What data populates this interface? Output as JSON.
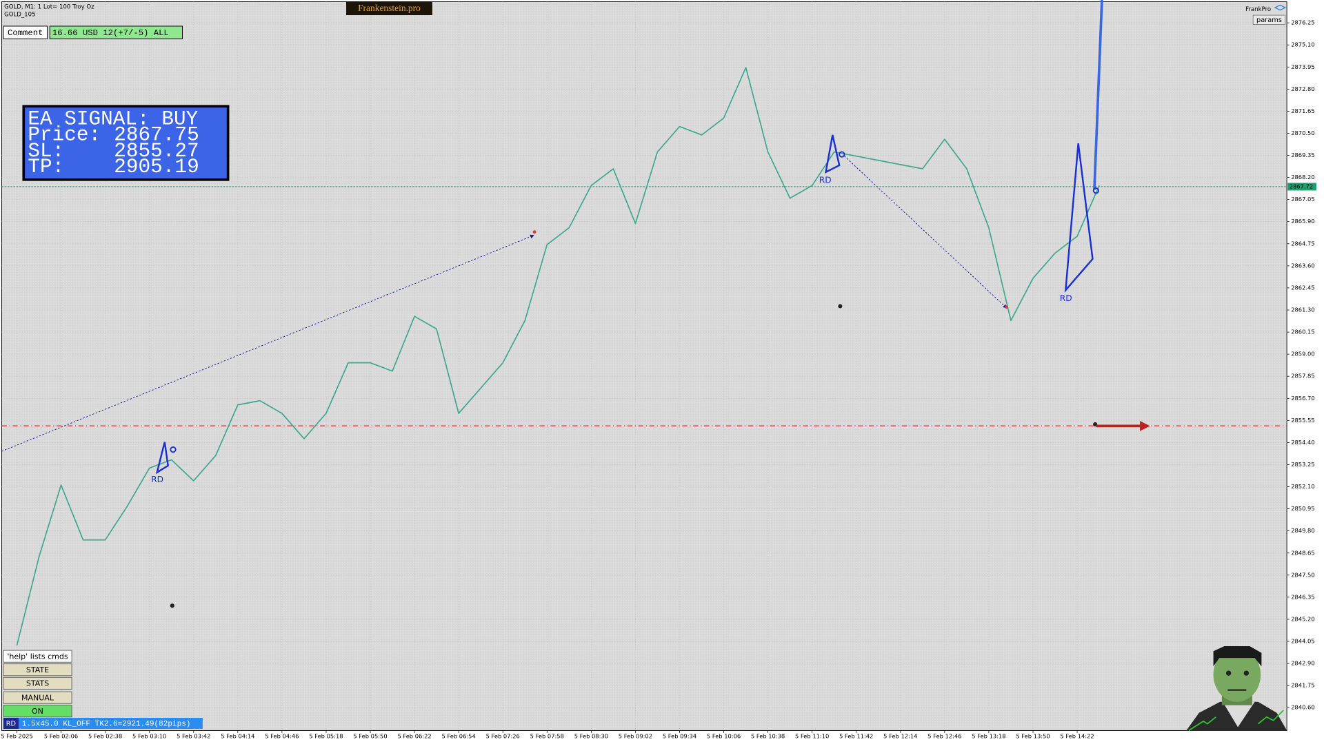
{
  "header": {
    "symbol": "GOLD, M1:  1 Lot= 100 Troy Oz",
    "account": "GOLD_105",
    "brand": "Frankenstein.pro",
    "user": "FrankPro",
    "params": "params"
  },
  "comment": {
    "label": "Comment",
    "text": "16.66 USD 12(+7/-5) ALL"
  },
  "signal": {
    "title": "EA SIGNAL: BUY",
    "price_label": "Price:",
    "price": 2867.75,
    "sl_label": "SL:",
    "sl": 2855.27,
    "tp_label": "TP:",
    "tp": 2905.19
  },
  "buttons": [
    "'help' lists cmds",
    "STATE",
    "STATS",
    "MANUAL",
    "ON"
  ],
  "status": {
    "tag": "RD",
    "text": "1.5x45.0 KL_OFF TK2.6=2921.49(82pips)"
  },
  "chart_data": {
    "type": "line",
    "categories": [
      "5 Feb 2025",
      null,
      "5 Feb 02:06",
      null,
      "5 Feb 02:38",
      null,
      "5 Feb 03:10",
      null,
      "5 Feb 03:42",
      null,
      "5 Feb 04:14",
      null,
      "5 Feb 04:46",
      null,
      "5 Feb 05:18",
      null,
      "5 Feb 05:50",
      null,
      "5 Feb 06:22",
      null,
      "5 Feb 06:54",
      null,
      "5 Feb 07:26",
      null,
      "5 Feb 07:58",
      null,
      "5 Feb 08:30",
      null,
      "5 Feb 09:02",
      null,
      "5 Feb 09:34",
      null,
      "5 Feb 10:06",
      null,
      "5 Feb 10:38",
      null,
      "5 Feb 11:10",
      null,
      "5 Feb 11:42",
      null,
      "5 Feb 12:14",
      null,
      "5 Feb 12:46",
      null,
      "5 Feb 13:18",
      null,
      "5 Feb 13:50",
      null,
      "5 Feb 14:22",
      null
    ],
    "values": [
      2843.84,
      2848.45,
      2852.19,
      2849.33,
      2849.33,
      2851.09,
      2853.07,
      2853.5,
      2852.41,
      2853.72,
      2856.36,
      2856.58,
      2855.92,
      2854.6,
      2855.92,
      2858.55,
      2858.55,
      2858.12,
      2860.97,
      2860.31,
      2855.92,
      2857.24,
      2858.55,
      2860.75,
      2864.7,
      2865.58,
      2867.78,
      2868.65,
      2865.8,
      2869.53,
      2870.85,
      2870.41,
      2871.29,
      2873.92,
      2869.53,
      2867.12,
      2867.78,
      2869.53,
      2869.31,
      2869.09,
      2868.87,
      2868.65,
      2870.19,
      2868.65,
      2865.58,
      2860.75,
      2862.95,
      2864.26,
      2865.14,
      2867.78
    ],
    "color": "#3fa88f",
    "current_price": 2867.72,
    "annotations": [
      "RD",
      "RD",
      "RD"
    ],
    "ylim": [
      2839.41,
      2877.35
    ],
    "yticks": [
      2876.25,
      {
        "value": 2875.1,
        "label": "2875.10"
      },
      2873.95,
      {
        "value": 2872.8,
        "label": "2872.80"
      },
      2871.65,
      {
        "value": 2870.5,
        "label": "2870.50"
      },
      2869.35,
      {
        "value": 2868.2,
        "label": "2868.20"
      },
      2867.05,
      {
        "value": 2865.9,
        "label": "2865.90"
      },
      2864.75,
      {
        "value": 2863.6,
        "label": "2863.60"
      },
      2862.45,
      {
        "value": 2861.3,
        "label": "2861.30"
      },
      2860.15,
      {
        "value": 2859,
        "label": "2859.00"
      },
      2857.85,
      {
        "value": 2856.7,
        "label": "2856.70"
      },
      2855.55,
      {
        "value": 2854.4,
        "label": "2854.40"
      },
      2853.25,
      {
        "value": 2852.1,
        "label": "2852.10"
      },
      2850.95,
      {
        "value": 2849.8,
        "label": "2849.80"
      },
      2848.65,
      {
        "value": 2847.5,
        "label": "2847.50"
      },
      2846.35,
      {
        "value": 2845.2,
        "label": "2845.20"
      },
      2844.05,
      {
        "value": 2842.9,
        "label": "2842.90"
      },
      2841.75,
      {
        "value": 2840.6,
        "label": "2840.60"
      }
    ],
    "grid": true
  }
}
